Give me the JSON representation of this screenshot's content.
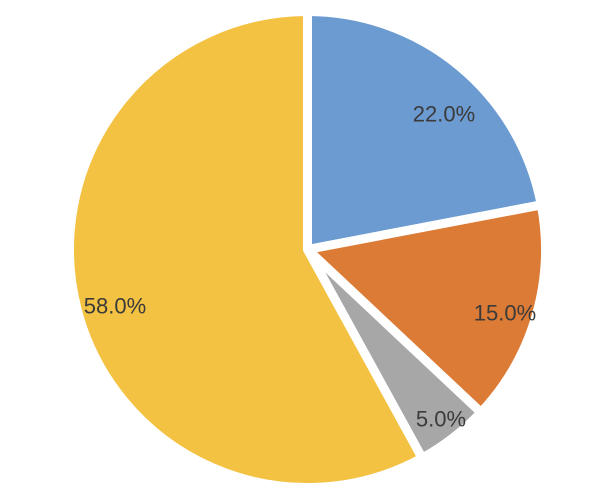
{
  "chart_data": {
    "type": "pie",
    "title": "",
    "legend": "none",
    "start_angle_deg": 90,
    "direction": "clockwise",
    "label_format": "percent_one_decimal",
    "background_color": "#ffffff",
    "separator_color": "#ffffff",
    "label_color": "#3b3b3b",
    "slices": [
      {
        "label": "22.0%",
        "value": 22.0,
        "color": "#6b9bd1"
      },
      {
        "label": "15.0%",
        "value": 15.0,
        "color": "#dc7b35"
      },
      {
        "label": "5.0%",
        "value": 5.0,
        "color": "#a7a7a7"
      },
      {
        "label": "58.0%",
        "value": 58.0,
        "color": "#f4c242"
      }
    ]
  }
}
